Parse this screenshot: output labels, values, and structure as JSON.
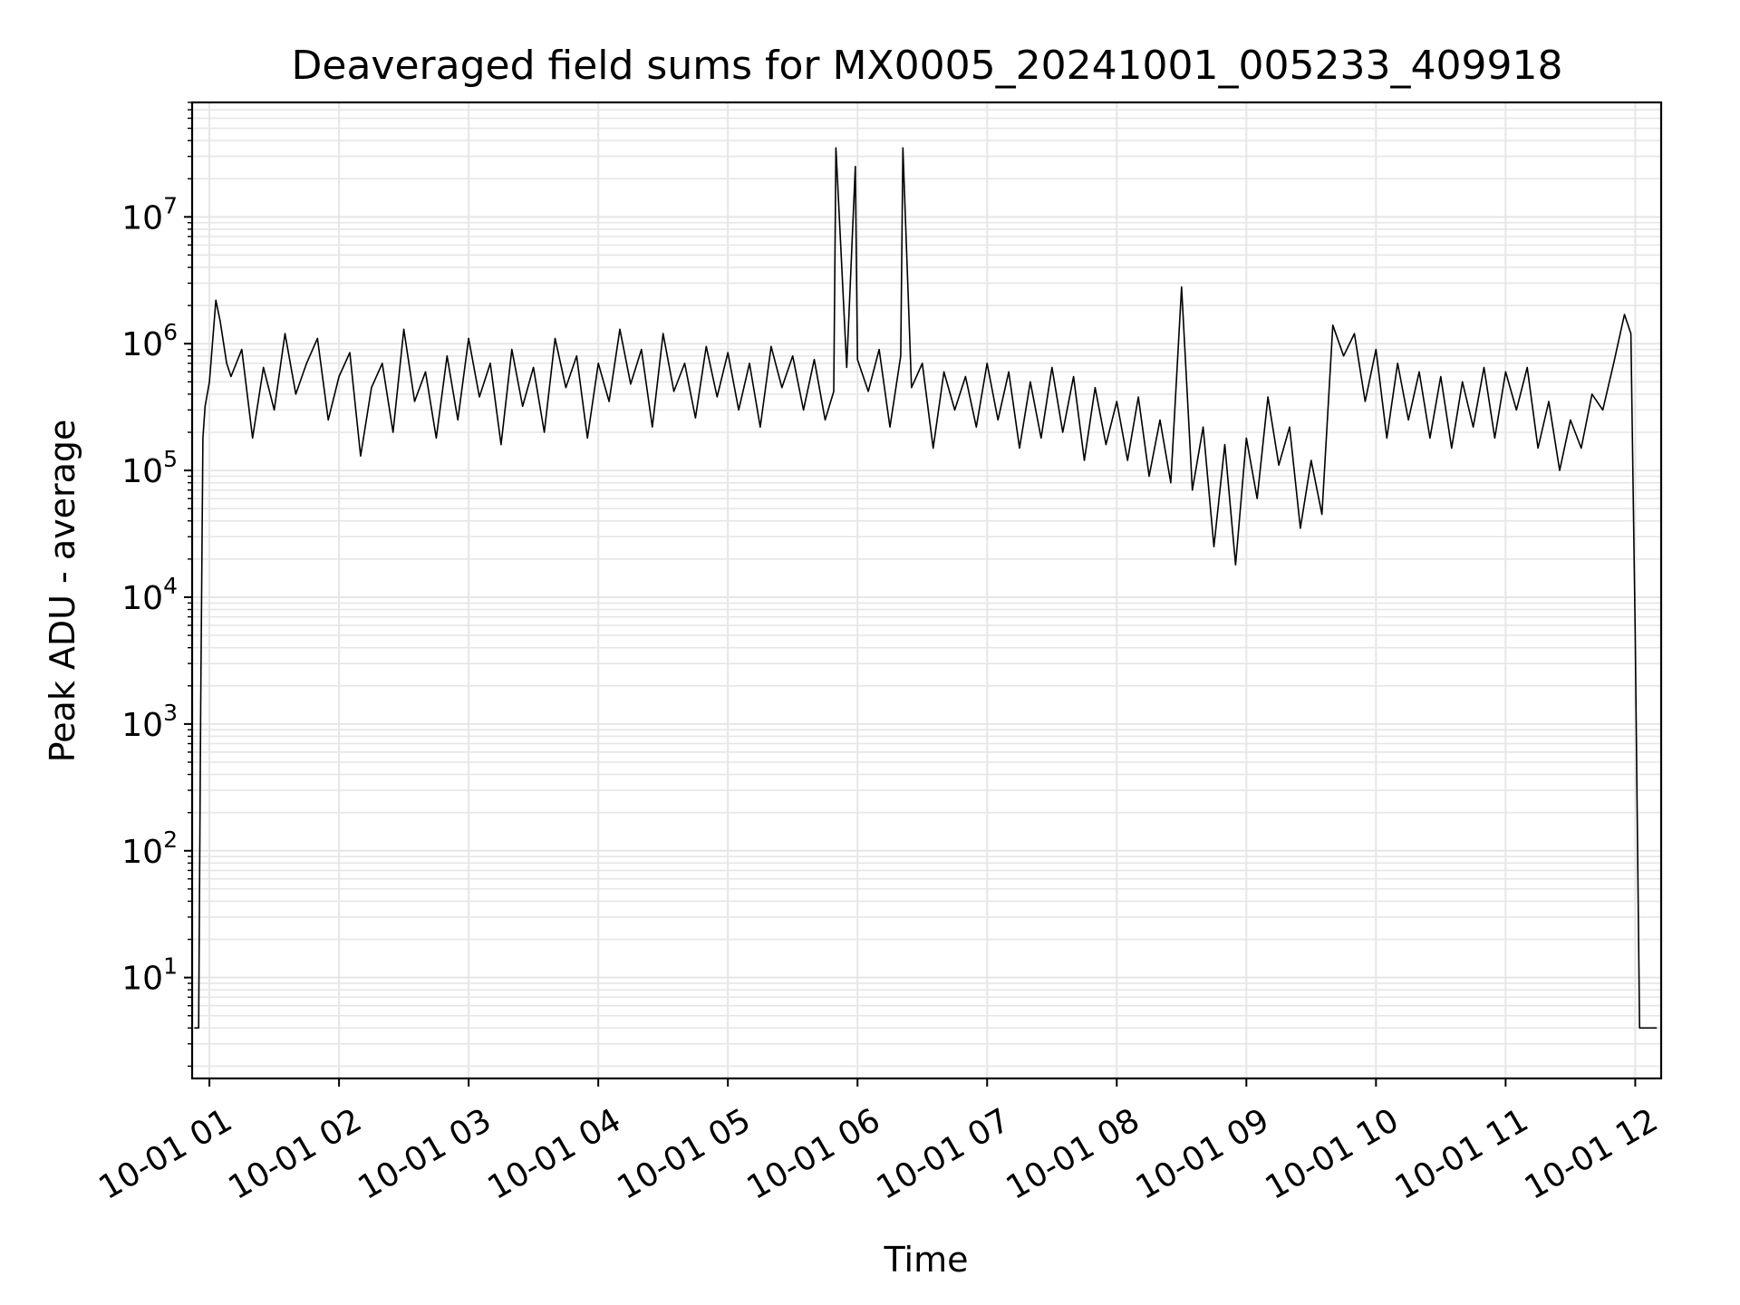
{
  "chart_data": {
    "type": "line",
    "title": "Deaveraged field sums for MX0005_20241001_005233_409918",
    "xlabel": "Time",
    "ylabel": "Peak ADU - average",
    "x_ticks": [
      "10-01 01",
      "10-01 02",
      "10-01 03",
      "10-01 04",
      "10-01 05",
      "10-01 06",
      "10-01 07",
      "10-01 08",
      "10-01 09",
      "10-01 10",
      "10-01 11",
      "10-01 12"
    ],
    "y_ticks": [
      {
        "base": "10",
        "exp": "1",
        "value": 10
      },
      {
        "base": "10",
        "exp": "2",
        "value": 100
      },
      {
        "base": "10",
        "exp": "3",
        "value": 1000
      },
      {
        "base": "10",
        "exp": "4",
        "value": 10000
      },
      {
        "base": "10",
        "exp": "5",
        "value": 100000
      },
      {
        "base": "10",
        "exp": "6",
        "value": 1000000
      },
      {
        "base": "10",
        "exp": "7",
        "value": 10000000
      }
    ],
    "y_scale": "log",
    "xlim": [
      "2024-10-01 00:52",
      "2024-10-01 12:12"
    ],
    "ylim": [
      1.6,
      80000000
    ],
    "grid": true,
    "grid_minor": true,
    "line_color": "#000000",
    "grid_color": "#e6e6e6",
    "series": [
      {
        "x": [
          "2024-10-01 00:53",
          "2024-10-01 00:55",
          "2024-10-01 00:56",
          "2024-10-01 00:57",
          "2024-10-01 00:58",
          "2024-10-01 01:00",
          "2024-10-01 01:03",
          "2024-10-01 01:05",
          "2024-10-01 01:08",
          "2024-10-01 01:10",
          "2024-10-01 01:15",
          "2024-10-01 01:20",
          "2024-10-01 01:25",
          "2024-10-01 01:30",
          "2024-10-01 01:35",
          "2024-10-01 01:40",
          "2024-10-01 01:45",
          "2024-10-01 01:50",
          "2024-10-01 01:55",
          "2024-10-01 02:00",
          "2024-10-01 02:05",
          "2024-10-01 02:10",
          "2024-10-01 02:15",
          "2024-10-01 02:20",
          "2024-10-01 02:25",
          "2024-10-01 02:30",
          "2024-10-01 02:35",
          "2024-10-01 02:40",
          "2024-10-01 02:45",
          "2024-10-01 02:50",
          "2024-10-01 02:55",
          "2024-10-01 03:00",
          "2024-10-01 03:05",
          "2024-10-01 03:10",
          "2024-10-01 03:15",
          "2024-10-01 03:20",
          "2024-10-01 03:25",
          "2024-10-01 03:30",
          "2024-10-01 03:35",
          "2024-10-01 03:40",
          "2024-10-01 03:45",
          "2024-10-01 03:50",
          "2024-10-01 03:55",
          "2024-10-01 04:00",
          "2024-10-01 04:05",
          "2024-10-01 04:10",
          "2024-10-01 04:15",
          "2024-10-01 04:20",
          "2024-10-01 04:25",
          "2024-10-01 04:30",
          "2024-10-01 04:35",
          "2024-10-01 04:40",
          "2024-10-01 04:45",
          "2024-10-01 04:50",
          "2024-10-01 04:55",
          "2024-10-01 05:00",
          "2024-10-01 05:05",
          "2024-10-01 05:10",
          "2024-10-01 05:15",
          "2024-10-01 05:20",
          "2024-10-01 05:25",
          "2024-10-01 05:30",
          "2024-10-01 05:35",
          "2024-10-01 05:40",
          "2024-10-01 05:45",
          "2024-10-01 05:49",
          "2024-10-01 05:50",
          "2024-10-01 05:55",
          "2024-10-01 05:59",
          "2024-10-01 06:00",
          "2024-10-01 06:05",
          "2024-10-01 06:10",
          "2024-10-01 06:15",
          "2024-10-01 06:20",
          "2024-10-01 06:21",
          "2024-10-01 06:25",
          "2024-10-01 06:30",
          "2024-10-01 06:35",
          "2024-10-01 06:40",
          "2024-10-01 06:45",
          "2024-10-01 06:50",
          "2024-10-01 06:55",
          "2024-10-01 07:00",
          "2024-10-01 07:05",
          "2024-10-01 07:10",
          "2024-10-01 07:15",
          "2024-10-01 07:20",
          "2024-10-01 07:25",
          "2024-10-01 07:30",
          "2024-10-01 07:35",
          "2024-10-01 07:40",
          "2024-10-01 07:45",
          "2024-10-01 07:50",
          "2024-10-01 07:55",
          "2024-10-01 08:00",
          "2024-10-01 08:05",
          "2024-10-01 08:10",
          "2024-10-01 08:15",
          "2024-10-01 08:20",
          "2024-10-01 08:25",
          "2024-10-01 08:30",
          "2024-10-01 08:35",
          "2024-10-01 08:40",
          "2024-10-01 08:45",
          "2024-10-01 08:50",
          "2024-10-01 08:55",
          "2024-10-01 09:00",
          "2024-10-01 09:05",
          "2024-10-01 09:10",
          "2024-10-01 09:15",
          "2024-10-01 09:20",
          "2024-10-01 09:25",
          "2024-10-01 09:30",
          "2024-10-01 09:35",
          "2024-10-01 09:40",
          "2024-10-01 09:45",
          "2024-10-01 09:50",
          "2024-10-01 09:55",
          "2024-10-01 10:00",
          "2024-10-01 10:05",
          "2024-10-01 10:10",
          "2024-10-01 10:15",
          "2024-10-01 10:20",
          "2024-10-01 10:25",
          "2024-10-01 10:30",
          "2024-10-01 10:35",
          "2024-10-01 10:40",
          "2024-10-01 10:45",
          "2024-10-01 10:50",
          "2024-10-01 10:55",
          "2024-10-01 11:00",
          "2024-10-01 11:05",
          "2024-10-01 11:10",
          "2024-10-01 11:15",
          "2024-10-01 11:20",
          "2024-10-01 11:25",
          "2024-10-01 11:30",
          "2024-10-01 11:35",
          "2024-10-01 11:40",
          "2024-10-01 11:45",
          "2024-10-01 11:50",
          "2024-10-01 11:55",
          "2024-10-01 11:58",
          "2024-10-01 12:00",
          "2024-10-01 12:02",
          "2024-10-01 12:04",
          "2024-10-01 12:06",
          "2024-10-01 12:08",
          "2024-10-01 12:10"
        ],
        "y": [
          4,
          4,
          1500,
          180000,
          320000,
          500000,
          2200000,
          1500000,
          700000,
          550000,
          900000,
          180000,
          650000,
          300000,
          1200000,
          400000,
          700000,
          1100000,
          250000,
          550000,
          850000,
          130000,
          450000,
          700000,
          200000,
          1300000,
          350000,
          600000,
          180000,
          800000,
          250000,
          1100000,
          380000,
          700000,
          160000,
          900000,
          320000,
          650000,
          200000,
          1100000,
          450000,
          800000,
          180000,
          700000,
          350000,
          1300000,
          480000,
          900000,
          220000,
          1200000,
          420000,
          700000,
          260000,
          950000,
          380000,
          850000,
          300000,
          700000,
          220000,
          950000,
          450000,
          800000,
          300000,
          750000,
          250000,
          420000,
          35000000,
          650000,
          25000000,
          750000,
          420000,
          900000,
          220000,
          800000,
          35000000,
          450000,
          700000,
          150000,
          600000,
          300000,
          550000,
          220000,
          700000,
          250000,
          600000,
          150000,
          500000,
          180000,
          650000,
          200000,
          550000,
          120000,
          450000,
          160000,
          350000,
          120000,
          380000,
          90000,
          250000,
          80000,
          2800000,
          70000,
          220000,
          25000,
          160000,
          18000,
          180000,
          60000,
          380000,
          110000,
          220000,
          35000,
          120000,
          45000,
          1400000,
          800000,
          1200000,
          350000,
          900000,
          180000,
          700000,
          250000,
          600000,
          180000,
          550000,
          150000,
          500000,
          220000,
          650000,
          180000,
          600000,
          300000,
          650000,
          150000,
          350000,
          100000,
          250000,
          150000,
          400000,
          300000,
          700000,
          1700000,
          1200000,
          5000,
          4,
          4,
          4,
          4,
          4
        ]
      }
    ]
  }
}
